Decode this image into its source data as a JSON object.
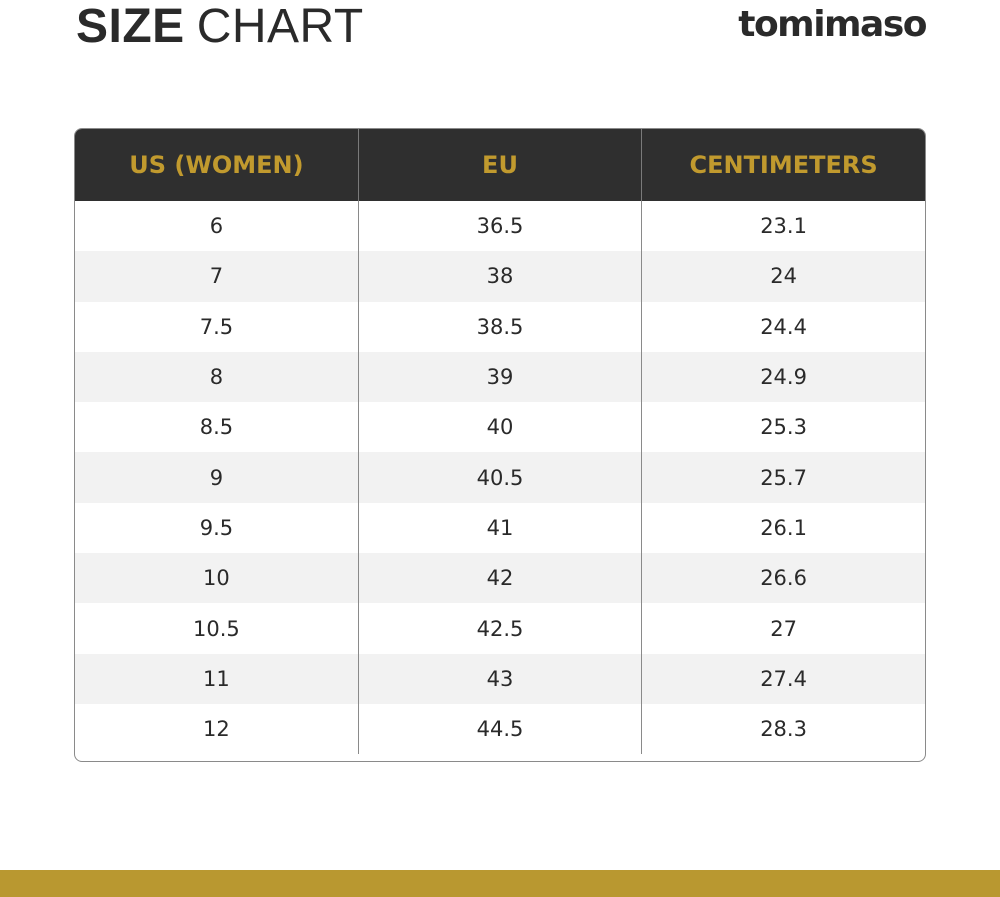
{
  "header": {
    "title_bold": "SIZE",
    "title_light": "CHART"
  },
  "brand": {
    "logo_text": "tomimaso"
  },
  "size_table": {
    "columns": [
      "US (WOMEN)",
      "EU",
      "CENTIMETERS"
    ],
    "rows": [
      [
        "6",
        "36.5",
        "23.1"
      ],
      [
        "7",
        "38",
        "24"
      ],
      [
        "7.5",
        "38.5",
        "24.4"
      ],
      [
        "8",
        "39",
        "24.9"
      ],
      [
        "8.5",
        "40",
        "25.3"
      ],
      [
        "9",
        "40.5",
        "25.7"
      ],
      [
        "9.5",
        "41",
        "26.1"
      ],
      [
        "10",
        "42",
        "26.6"
      ],
      [
        "10.5",
        "42.5",
        "27"
      ],
      [
        "11",
        "43",
        "27.4"
      ],
      [
        "12",
        "44.5",
        "28.3"
      ]
    ]
  },
  "colors": {
    "header_background": "#2f2f2f",
    "header_text": "#c19a2e",
    "accent_bar": "#b99830",
    "stripe_row": "#f2f2f2"
  }
}
